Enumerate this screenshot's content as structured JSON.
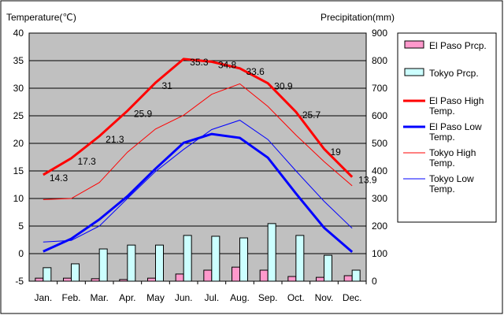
{
  "chart_data": {
    "type": "bar+line",
    "y_left_label": "Temperature(℃)",
    "y_right_label": "Precipitation(mm)",
    "ylim_left": [
      -5,
      40
    ],
    "ylim_right": [
      0,
      900
    ],
    "left_ticks": [
      "-5",
      "0",
      "5",
      "10",
      "15",
      "20",
      "25",
      "30",
      "35",
      "40"
    ],
    "right_ticks": [
      "0",
      "100",
      "200",
      "300",
      "400",
      "500",
      "600",
      "700",
      "800",
      "900"
    ],
    "categories": [
      "Jan.",
      "Feb.",
      "Mar.",
      "Apr.",
      "May",
      "Jun.",
      "Jul.",
      "Aug.",
      "Sep.",
      "Oct.",
      "Nov.",
      "Dec."
    ],
    "grid": true,
    "legend_position": "right",
    "bars": [
      {
        "name": "El Paso Prcp.",
        "color": "#ff99cc",
        "values": [
          11,
          11,
          9,
          6,
          11,
          26,
          40,
          51,
          40,
          17,
          14,
          20
        ]
      },
      {
        "name": "Tokyo Prcp.",
        "color": "#ccffff",
        "values": [
          49,
          63,
          117,
          131,
          131,
          166,
          163,
          157,
          209,
          166,
          94,
          40
        ]
      }
    ],
    "lines": [
      {
        "name": "El Paso High Temp.",
        "color": "#ff0000",
        "width": 3,
        "values": [
          14.3,
          17.3,
          21.3,
          25.9,
          31,
          35.3,
          34.8,
          33.6,
          30.9,
          25.7,
          19,
          13.9
        ],
        "labels": [
          "14.3",
          "17.3",
          "21.3",
          "25.9",
          "31",
          "35.3",
          "34.8",
          "33.6",
          "30.9",
          "25.7",
          "19",
          "13.9"
        ]
      },
      {
        "name": "El Paso Low Temp.",
        "color": "#0000ff",
        "width": 3,
        "values": [
          0.4,
          2.7,
          6.2,
          10.4,
          15.4,
          20.1,
          21.7,
          21.0,
          17.4,
          10.9,
          4.7,
          0.3
        ]
      },
      {
        "name": "Tokyo High Temp.",
        "color": "#ff0000",
        "width": 1,
        "values": [
          9.8,
          10.0,
          12.9,
          18.4,
          22.6,
          25.1,
          28.9,
          30.8,
          26.7,
          21.5,
          16.7,
          12.3
        ]
      },
      {
        "name": "Tokyo Low Temp.",
        "color": "#0000ff",
        "width": 1,
        "values": [
          2.1,
          2.4,
          5.0,
          10.0,
          14.9,
          18.9,
          22.5,
          24.2,
          20.7,
          15.0,
          9.5,
          4.6
        ]
      }
    ]
  }
}
